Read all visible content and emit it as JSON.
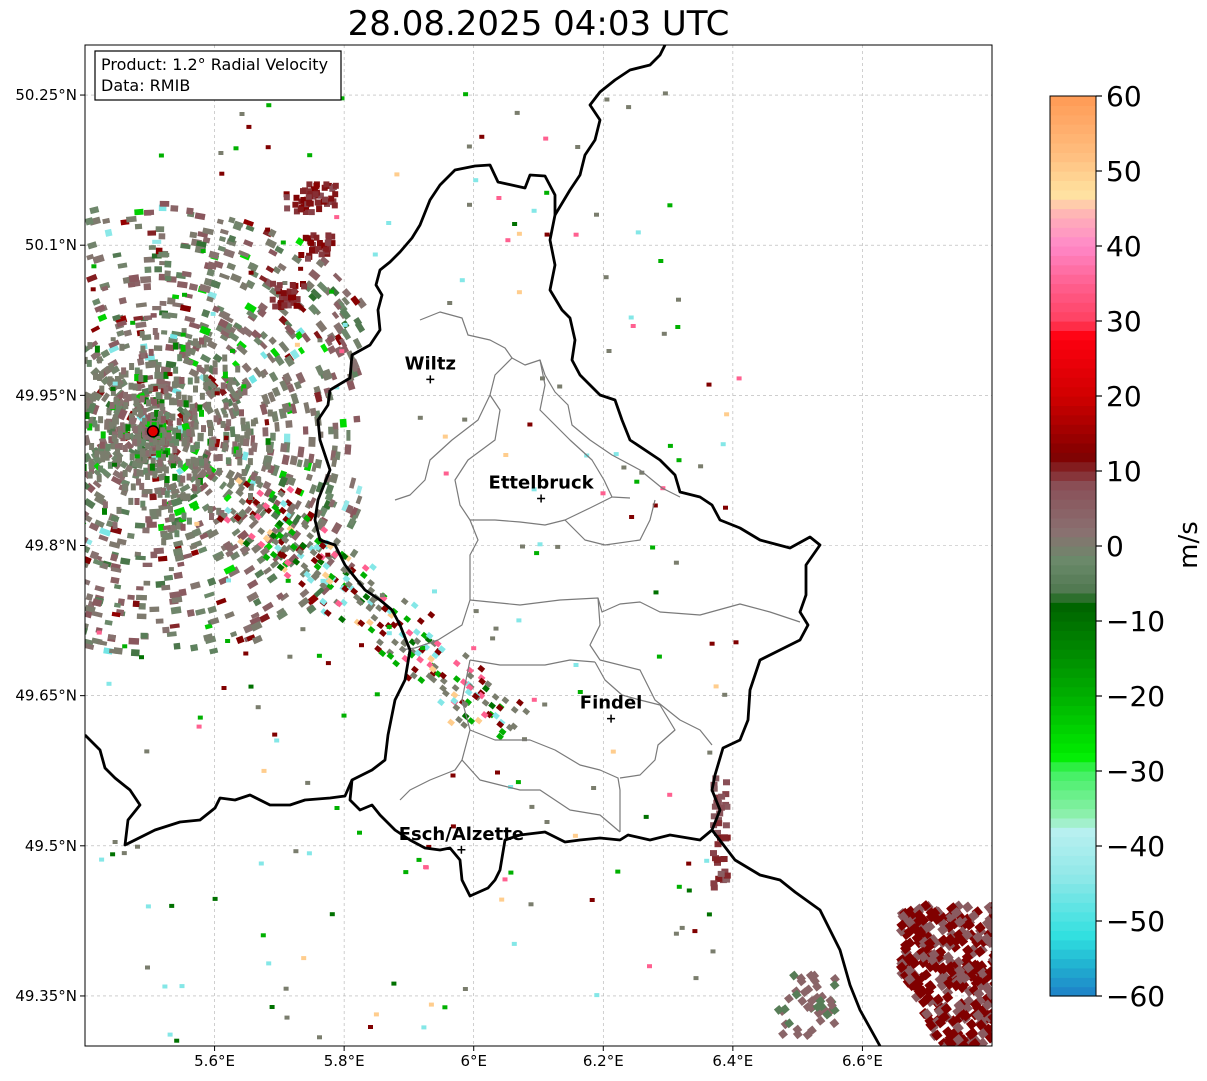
{
  "title": "28.08.2025 04:03 UTC",
  "info": {
    "product": "Product: 1.2° Radial Velocity",
    "source": "Data: RMIB"
  },
  "map": {
    "lon_range": [
      5.4,
      6.8
    ],
    "lat_range": [
      49.3,
      50.3
    ],
    "lon_ticks": [
      {
        "value": 5.6,
        "label": "5.6°E"
      },
      {
        "value": 5.8,
        "label": "5.8°E"
      },
      {
        "value": 6.0,
        "label": "6°E"
      },
      {
        "value": 6.2,
        "label": "6.2°E"
      },
      {
        "value": 6.4,
        "label": "6.4°E"
      },
      {
        "value": 6.6,
        "label": "6.6°E"
      }
    ],
    "lat_ticks": [
      {
        "value": 49.35,
        "label": "49.35°N"
      },
      {
        "value": 49.5,
        "label": "49.5°N"
      },
      {
        "value": 49.65,
        "label": "49.65°N"
      },
      {
        "value": 49.8,
        "label": "49.8°N"
      },
      {
        "value": 49.95,
        "label": "49.95°N"
      },
      {
        "value": 50.1,
        "label": "50.1°N"
      },
      {
        "value": 50.25,
        "label": "50.25°N"
      }
    ],
    "radar_site": {
      "lon": 5.505,
      "lat": 49.914
    },
    "cities": [
      {
        "name": "Wiltz",
        "lon": 5.933,
        "lat": 49.966
      },
      {
        "name": "Ettelbruck",
        "lon": 6.104,
        "lat": 49.847
      },
      {
        "name": "Findel",
        "lon": 6.212,
        "lat": 49.627
      },
      {
        "name": "Esch/Alzette",
        "lon": 5.981,
        "lat": 49.496
      }
    ]
  },
  "colorbar": {
    "label": "m/s",
    "min": -60,
    "max": 60,
    "ticks": [
      {
        "value": 60,
        "label": "60"
      },
      {
        "value": 50,
        "label": "50"
      },
      {
        "value": 40,
        "label": "40"
      },
      {
        "value": 30,
        "label": "30"
      },
      {
        "value": 20,
        "label": "20"
      },
      {
        "value": 10,
        "label": "10"
      },
      {
        "value": 0,
        "label": "0"
      },
      {
        "value": -10,
        "label": "−10"
      },
      {
        "value": -20,
        "label": "−20"
      },
      {
        "value": -30,
        "label": "−30"
      },
      {
        "value": -40,
        "label": "−40"
      },
      {
        "value": -50,
        "label": "−50"
      },
      {
        "value": -60,
        "label": "−60"
      }
    ],
    "stops": [
      {
        "value": 60,
        "color": "#ff9a55"
      },
      {
        "value": 52,
        "color": "#ffbf80"
      },
      {
        "value": 47,
        "color": "#ffe3a0"
      },
      {
        "value": 44,
        "color": "#ffb0b8"
      },
      {
        "value": 40,
        "color": "#ff88c8"
      },
      {
        "value": 35,
        "color": "#ff6090"
      },
      {
        "value": 30,
        "color": "#ff4060"
      },
      {
        "value": 28,
        "color": "#ff0010"
      },
      {
        "value": 20,
        "color": "#d00000"
      },
      {
        "value": 12,
        "color": "#800000"
      },
      {
        "value": 8,
        "color": "#8a5058"
      },
      {
        "value": 2,
        "color": "#8a7070"
      },
      {
        "value": -2,
        "color": "#6a8a6a"
      },
      {
        "value": -6,
        "color": "#507850"
      },
      {
        "value": -8,
        "color": "#006400"
      },
      {
        "value": -20,
        "color": "#00b000"
      },
      {
        "value": -28,
        "color": "#00ee00"
      },
      {
        "value": -30,
        "color": "#40f060"
      },
      {
        "value": -36,
        "color": "#90f0b0"
      },
      {
        "value": -38,
        "color": "#b8f0f0"
      },
      {
        "value": -44,
        "color": "#90e8e8"
      },
      {
        "value": -52,
        "color": "#30e0e0"
      },
      {
        "value": -56,
        "color": "#20b0d0"
      },
      {
        "value": -60,
        "color": "#1e7fc8"
      }
    ]
  }
}
